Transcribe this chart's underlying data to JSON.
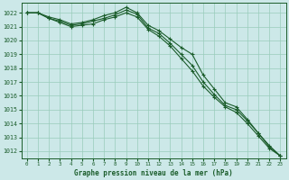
{
  "title": "Graphe pression niveau de la mer (hPa)",
  "bg_color": "#cce8e8",
  "grid_color": "#99ccbb",
  "line_color": "#1a5c2a",
  "x_min": -0.5,
  "x_max": 23.5,
  "y_min": 1011.5,
  "y_max": 1022.7,
  "yticks": [
    1012,
    1013,
    1014,
    1015,
    1016,
    1017,
    1018,
    1019,
    1020,
    1021,
    1022
  ],
  "xticks": [
    0,
    1,
    2,
    3,
    4,
    5,
    6,
    7,
    8,
    9,
    10,
    11,
    12,
    13,
    14,
    15,
    16,
    17,
    18,
    19,
    20,
    21,
    22,
    23
  ],
  "series1": [
    1022.0,
    1022.0,
    1021.7,
    1021.5,
    1021.2,
    1021.3,
    1021.5,
    1021.8,
    1022.0,
    1022.4,
    1022.0,
    1021.1,
    1020.7,
    1020.1,
    1019.5,
    1019.0,
    1017.5,
    1016.5,
    1015.5,
    1015.2,
    1014.3,
    1013.3,
    1012.3,
    1011.65
  ],
  "series2": [
    1022.0,
    1022.0,
    1021.6,
    1021.4,
    1021.1,
    1021.2,
    1021.4,
    1021.6,
    1021.85,
    1022.2,
    1021.9,
    1020.9,
    1020.5,
    1019.8,
    1019.0,
    1018.2,
    1017.0,
    1016.1,
    1015.3,
    1015.0,
    1014.2,
    1013.3,
    1012.4,
    1011.65
  ],
  "series3": [
    1022.0,
    1022.0,
    1021.6,
    1021.3,
    1021.0,
    1021.1,
    1021.2,
    1021.5,
    1021.7,
    1022.0,
    1021.7,
    1020.8,
    1020.3,
    1019.6,
    1018.7,
    1017.8,
    1016.7,
    1015.9,
    1015.2,
    1014.8,
    1014.0,
    1013.1,
    1012.2,
    1011.65
  ]
}
